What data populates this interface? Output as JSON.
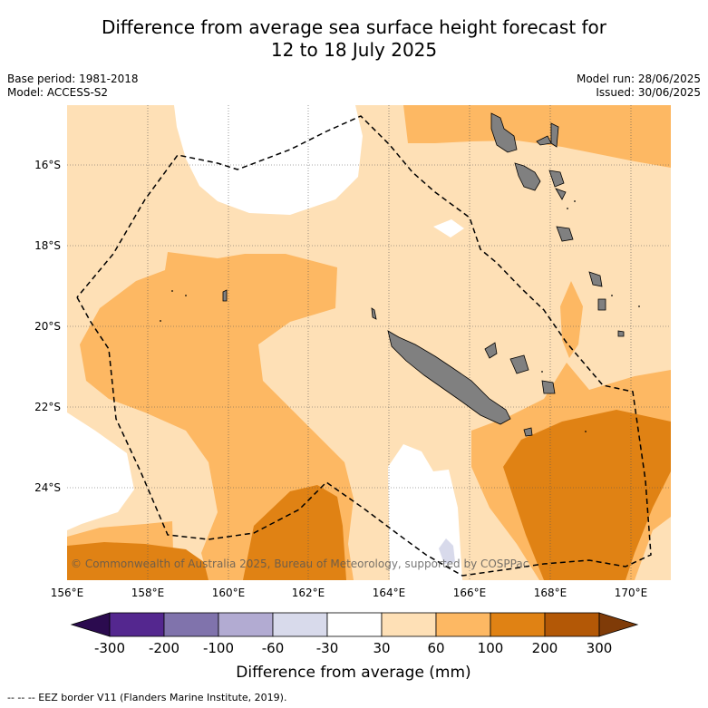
{
  "title": {
    "line1": "Difference from average sea surface height forecast for",
    "line2": "12 to 18 July 2025"
  },
  "meta": {
    "base_period": "Base period: 1981-2018",
    "model": "Model: ACCESS-S2",
    "model_run": "Model run: 28/06/2025",
    "issued": "Issued: 30/06/2025"
  },
  "map": {
    "lon_range": [
      156.5,
      171.5
    ],
    "lat_range": [
      -26.3,
      -14.6
    ],
    "lon_ticks": [
      "156°E",
      "158°E",
      "160°E",
      "162°E",
      "164°E",
      "166°E",
      "168°E",
      "170°E"
    ],
    "lat_ticks": [
      "16°S",
      "18°S",
      "20°S",
      "22°S",
      "24°S"
    ],
    "land_color": "#808080",
    "copyright": "© Commonwealth of Australia 2025, Bureau of Meteorology, supported by COSPPac"
  },
  "colorbar": {
    "ticks": [
      "-300",
      "-200",
      "-100",
      "-60",
      "-30",
      "30",
      "60",
      "100",
      "200",
      "300"
    ],
    "colors": [
      "#2b0b4f",
      "#54278f",
      "#8073ac",
      "#b2abd2",
      "#d8daeb",
      "#ffffff",
      "#fee0b6",
      "#fdb863",
      "#e08214",
      "#b35806",
      "#7f3b08"
    ],
    "label": "Difference from average (mm)"
  },
  "footer": "-- -- -- EEZ border V11 (Flanders Marine Institute, 2019)."
}
